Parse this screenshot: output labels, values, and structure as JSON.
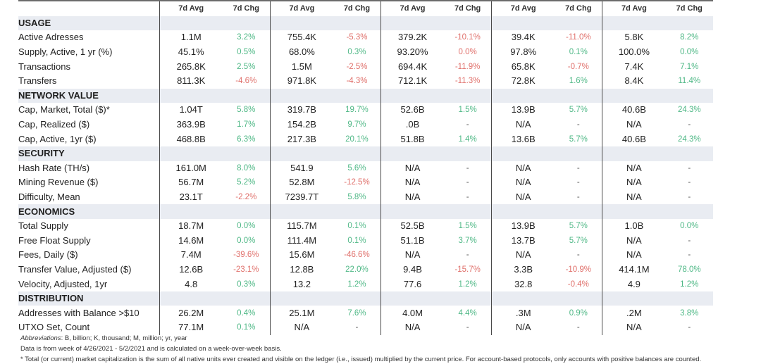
{
  "header": {
    "avg_label": "7d Avg",
    "chg_label": "7d Chg",
    "group_count": 5
  },
  "sections": [
    {
      "title": "USAGE",
      "rows": [
        {
          "label": "Active Adresses",
          "values": [
            [
              "1.1M",
              "3.2%",
              "pos"
            ],
            [
              "755.4K",
              "-5.3%",
              "neg"
            ],
            [
              "379.2K",
              "-10.1%",
              "neg"
            ],
            [
              "39.4K",
              "-11.0%",
              "neg"
            ],
            [
              "5.8K",
              "8.2%",
              "pos"
            ]
          ]
        },
        {
          "label": "Supply, Active, 1 yr (%)",
          "values": [
            [
              "45.1%",
              "0.5%",
              "pos"
            ],
            [
              "68.0%",
              "0.3%",
              "pos"
            ],
            [
              "93.20%",
              "0.0%",
              "neg"
            ],
            [
              "97.8%",
              "0.1%",
              "pos"
            ],
            [
              "100.0%",
              "0.0%",
              "pos"
            ]
          ]
        },
        {
          "label": "Transactions",
          "values": [
            [
              "265.8K",
              "2.5%",
              "pos"
            ],
            [
              "1.5M",
              "-2.5%",
              "neg"
            ],
            [
              "694.4K",
              "-11.9%",
              "neg"
            ],
            [
              "65.8K",
              "-0.7%",
              "neg"
            ],
            [
              "7.4K",
              "7.1%",
              "pos"
            ]
          ]
        },
        {
          "label": "Transfers",
          "values": [
            [
              "811.3K",
              "-4.6%",
              "neg"
            ],
            [
              "971.8K",
              "-4.3%",
              "neg"
            ],
            [
              "712.1K",
              "-11.3%",
              "neg"
            ],
            [
              "72.8K",
              "1.6%",
              "pos"
            ],
            [
              "8.4K",
              "11.4%",
              "pos"
            ]
          ]
        }
      ]
    },
    {
      "title": "NETWORK VALUE",
      "rows": [
        {
          "label": "Cap, Market, Total ($)*",
          "values": [
            [
              "1.04T",
              "5.8%",
              "pos"
            ],
            [
              "319.7B",
              "19.7%",
              "pos"
            ],
            [
              "52.6B",
              "1.5%",
              "pos"
            ],
            [
              "13.9B",
              "5.7%",
              "pos"
            ],
            [
              "40.6B",
              "24.3%",
              "pos"
            ]
          ]
        },
        {
          "label": "Cap, Realized ($)",
          "values": [
            [
              "363.9B",
              "1.7%",
              "pos"
            ],
            [
              "154.2B",
              "9.7%",
              "pos"
            ],
            [
              ".0B",
              "-",
              "neu"
            ],
            [
              "N/A",
              "-",
              "neu"
            ],
            [
              "N/A",
              "-",
              "neu"
            ]
          ]
        },
        {
          "label": "Cap, Active, 1yr ($)",
          "values": [
            [
              "468.8B",
              "6.3%",
              "pos"
            ],
            [
              "217.3B",
              "20.1%",
              "pos"
            ],
            [
              "51.8B",
              "1.4%",
              "pos"
            ],
            [
              "13.6B",
              "5.7%",
              "pos"
            ],
            [
              "40.6B",
              "24.3%",
              "pos"
            ]
          ]
        }
      ]
    },
    {
      "title": "SECURITY",
      "rows": [
        {
          "label": "Hash Rate (TH/s)",
          "values": [
            [
              "161.0M",
              "8.0%",
              "pos"
            ],
            [
              "541.9",
              "5.6%",
              "pos"
            ],
            [
              "N/A",
              "-",
              "neu"
            ],
            [
              "N/A",
              "-",
              "neu"
            ],
            [
              "N/A",
              "-",
              "neu"
            ]
          ]
        },
        {
          "label": "Mining Revenue ($)",
          "values": [
            [
              "56.7M",
              "5.2%",
              "pos"
            ],
            [
              "52.8M",
              "-12.5%",
              "neg"
            ],
            [
              "N/A",
              "-",
              "neu"
            ],
            [
              "N/A",
              "-",
              "neu"
            ],
            [
              "N/A",
              "-",
              "neu"
            ]
          ]
        },
        {
          "label": "Difficulty, Mean",
          "values": [
            [
              "23.1T",
              "-2.2%",
              "neg"
            ],
            [
              "7239.7T",
              "5.8%",
              "pos"
            ],
            [
              "N/A",
              "-",
              "neu"
            ],
            [
              "N/A",
              "-",
              "neu"
            ],
            [
              "N/A",
              "-",
              "neu"
            ]
          ]
        }
      ]
    },
    {
      "title": "ECONOMICS",
      "rows": [
        {
          "label": "Total Supply",
          "values": [
            [
              "18.7M",
              "0.0%",
              "pos"
            ],
            [
              "115.7M",
              "0.1%",
              "pos"
            ],
            [
              "52.5B",
              "1.5%",
              "pos"
            ],
            [
              "13.9B",
              "5.7%",
              "pos"
            ],
            [
              "1.0B",
              "0.0%",
              "pos"
            ]
          ]
        },
        {
          "label": "Free Float Supply",
          "values": [
            [
              "14.6M",
              "0.0%",
              "pos"
            ],
            [
              "111.4M",
              "0.1%",
              "pos"
            ],
            [
              "51.1B",
              "3.7%",
              "pos"
            ],
            [
              "13.7B",
              "5.7%",
              "pos"
            ],
            [
              "N/A",
              "-",
              "neu"
            ]
          ]
        },
        {
          "label": "Fees, Daily ($)",
          "values": [
            [
              "7.4M",
              "-39.6%",
              "neg"
            ],
            [
              "15.6M",
              "-46.6%",
              "neg"
            ],
            [
              "N/A",
              "-",
              "neu"
            ],
            [
              "N/A",
              "-",
              "neu"
            ],
            [
              "N/A",
              "-",
              "neu"
            ]
          ]
        },
        {
          "label": "Transfer Value, Adjusted ($)",
          "values": [
            [
              "12.6B",
              "-23.1%",
              "neg"
            ],
            [
              "12.8B",
              "22.0%",
              "pos"
            ],
            [
              "9.4B",
              "-15.7%",
              "neg"
            ],
            [
              "3.3B",
              "-10.9%",
              "neg"
            ],
            [
              "414.1M",
              "78.0%",
              "pos"
            ]
          ]
        },
        {
          "label": "Velocity, Adjusted, 1yr",
          "values": [
            [
              "4.8",
              "0.3%",
              "pos"
            ],
            [
              "13.2",
              "1.2%",
              "pos"
            ],
            [
              "77.6",
              "1.2%",
              "pos"
            ],
            [
              "32.8",
              "-0.4%",
              "neg"
            ],
            [
              "4.9",
              "1.2%",
              "pos"
            ]
          ]
        }
      ]
    },
    {
      "title": "DISTRIBUTION",
      "rows": [
        {
          "label": "Addresses with Balance >$10",
          "values": [
            [
              "26.2M",
              "0.4%",
              "pos"
            ],
            [
              "25.1M",
              "7.6%",
              "pos"
            ],
            [
              "4.0M",
              "4.4%",
              "pos"
            ],
            [
              ".3M",
              "0.9%",
              "pos"
            ],
            [
              ".2M",
              "3.8%",
              "pos"
            ]
          ]
        },
        {
          "label": "UTXO Set, Count",
          "values": [
            [
              "77.1M",
              "0.1%",
              "pos"
            ],
            [
              "N/A",
              "-",
              "neu"
            ],
            [
              "N/A",
              "-",
              "neu"
            ],
            [
              "N/A",
              "-",
              "neu"
            ],
            [
              "N/A",
              "-",
              "neu"
            ]
          ]
        }
      ]
    }
  ],
  "footer": {
    "abbrev_label": "Abbreviations",
    "abbrev_text": ": B, billion; K, thousand; M, million; yr, year",
    "data_note": "Data is from week of 4/26/2021 - 5/2/2021 and is calculated on a week-over-week basis.",
    "footnote": "* Total (or current) market capitalization is the sum of all native units ever created and visible on the ledger (i.e., issued) multiplied by the current price. For account-based protocols, only accounts with positive balances are counted."
  },
  "colors": {
    "positive": "#4fb886",
    "negative": "#e0706b",
    "section_bg": "#e9ecf2"
  }
}
